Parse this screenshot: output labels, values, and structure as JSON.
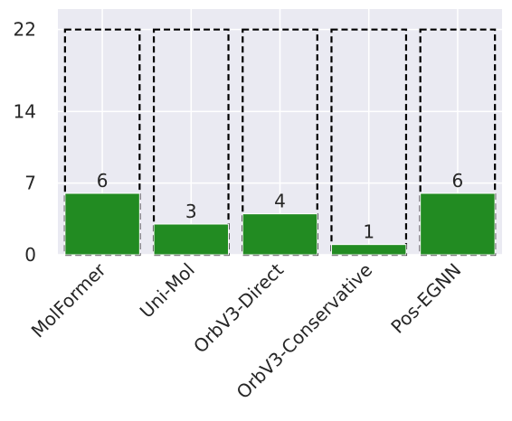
{
  "chart_data": {
    "type": "bar",
    "categories": [
      "MolFormer",
      "Uni-Mol",
      "OrbV3-Direct",
      "OrbV3-Conservative",
      "Pos-EGNN"
    ],
    "values": [
      6,
      3,
      4,
      1,
      6
    ],
    "max_values": [
      22,
      22,
      22,
      22,
      22
    ],
    "data_labels": [
      "6",
      "3",
      "4",
      "1",
      "6"
    ],
    "yticks": [
      0,
      7,
      14,
      22
    ],
    "ylim": [
      0,
      24
    ],
    "grid": true,
    "title": "",
    "xlabel": "",
    "ylabel": "",
    "colors": {
      "bar": "#228b22",
      "outline": "#000000",
      "plot_bg": "#eaeaf2",
      "grid": "#ffffff"
    }
  }
}
